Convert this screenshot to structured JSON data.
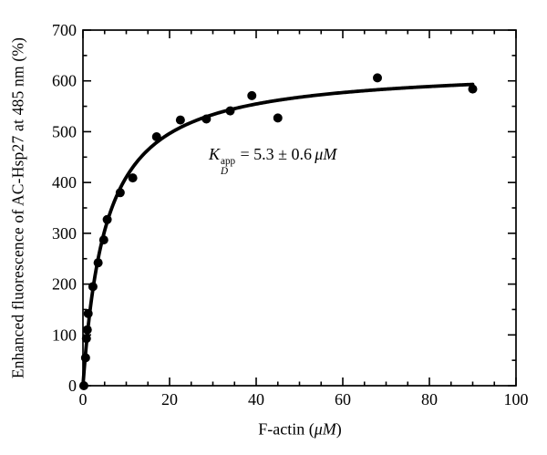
{
  "figure": {
    "background_color": "#ffffff",
    "ink_color": "#000000"
  },
  "chart_data": {
    "type": "scatter",
    "title": "",
    "xlabel": "F-actin (μM)",
    "xlabel_parts": {
      "prefix": "F-actin (",
      "unit": "μM",
      "suffix": ")"
    },
    "ylabel": "Enhanced fluorescence of AC-Hsp27 at 485 nm (%)",
    "xlim": [
      0,
      100
    ],
    "ylim": [
      0,
      700
    ],
    "x_ticks": [
      0,
      20,
      40,
      60,
      80,
      100
    ],
    "x_minor_step": 5,
    "y_ticks": [
      0,
      100,
      200,
      300,
      400,
      500,
      600,
      700
    ],
    "y_minor_step": 50,
    "grid": false,
    "legend": "none",
    "marker": "filled-black-circle",
    "points": [
      [
        0.2,
        0
      ],
      [
        0.6,
        55
      ],
      [
        0.8,
        93
      ],
      [
        1.0,
        110
      ],
      [
        1.2,
        142
      ],
      [
        2.3,
        195
      ],
      [
        3.5,
        242
      ],
      [
        4.8,
        287
      ],
      [
        5.6,
        327
      ],
      [
        8.6,
        380
      ],
      [
        11.5,
        409
      ],
      [
        17,
        490
      ],
      [
        22.5,
        523
      ],
      [
        28.5,
        525
      ],
      [
        34,
        541
      ],
      [
        39,
        571
      ],
      [
        45,
        527
      ],
      [
        68,
        606
      ],
      [
        90,
        584
      ]
    ],
    "fit_curve": {
      "model": "y = Bmax*x/(Kd+x)",
      "bmax_percent": 628,
      "kd_um": 5.3,
      "x_start": 0,
      "x_end": 90
    },
    "annotation": {
      "symbol": "K",
      "subscript": "D",
      "superscript": "app",
      "value_text": "= 5.3 ± 0.6",
      "unit": "μM",
      "full": "K_D^app = 5.3 ± 0.6 μM"
    }
  }
}
